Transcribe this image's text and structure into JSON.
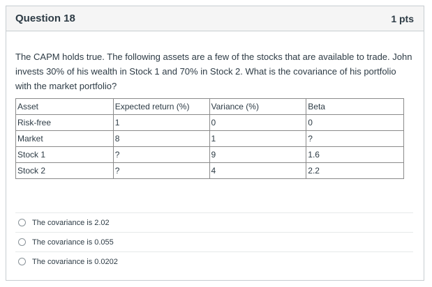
{
  "header": {
    "title": "Question 18",
    "points": "1 pts"
  },
  "question": {
    "text": "The CAPM holds true. The following assets are a few of the stocks that are available to trade. John invests 30% of his wealth in Stock 1 and 70% in Stock 2. What is the covariance of his portfolio with the market portfolio?"
  },
  "table": {
    "headers": [
      "Asset",
      "Expected return (%)",
      "Variance (%)",
      "Beta"
    ],
    "rows": [
      [
        "Risk-free",
        "1",
        "0",
        "0"
      ],
      [
        "Market",
        "8",
        "1",
        "?"
      ],
      [
        "Stock 1",
        "?",
        "9",
        "1.6"
      ],
      [
        "Stock 2",
        "?",
        "4",
        "2.2"
      ]
    ]
  },
  "answers": [
    {
      "label": "The covariance is 2.02"
    },
    {
      "label": "The covariance is 0.055"
    },
    {
      "label": "The covariance is 0.0202"
    }
  ]
}
